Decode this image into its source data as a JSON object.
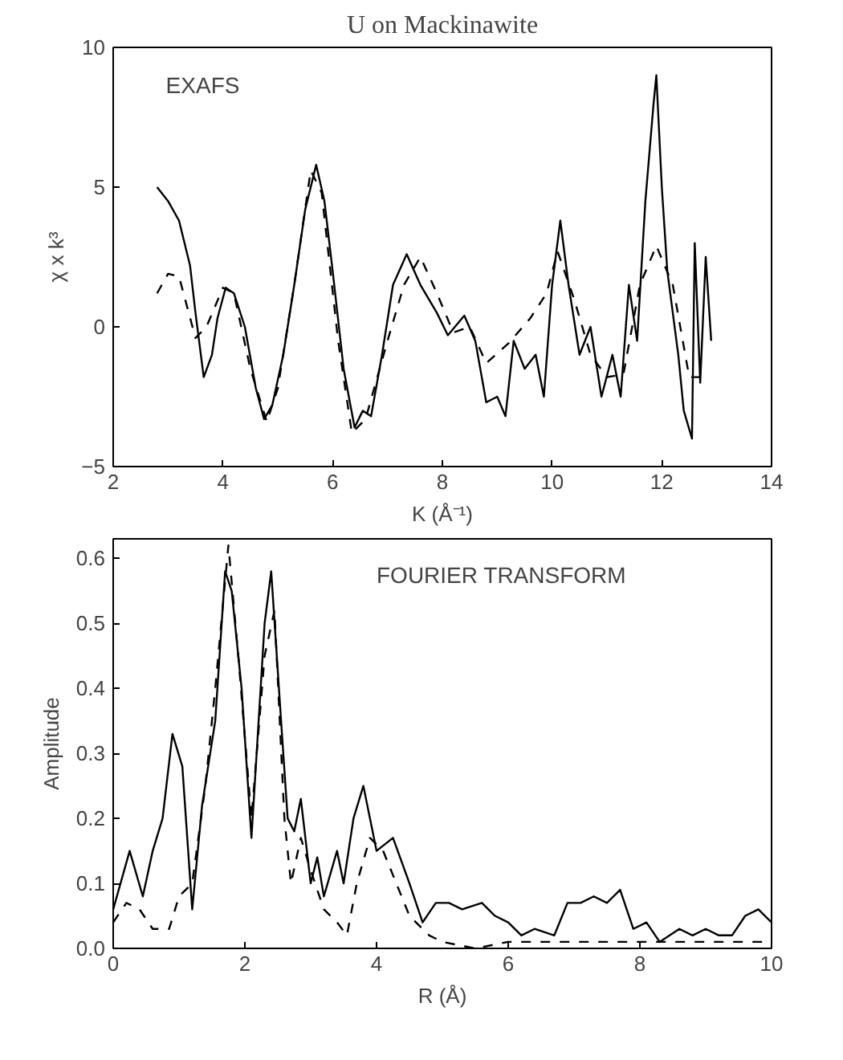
{
  "chart_data": [
    {
      "type": "line",
      "title": "U on Mackinawite",
      "xlabel": "K (Å⁻¹)",
      "ylabel": "χ x k³",
      "annotations": [
        "EXAFS"
      ],
      "xlim": [
        2,
        14
      ],
      "ylim": [
        -5,
        10
      ],
      "xticks": [
        2,
        4,
        6,
        8,
        10,
        12,
        14
      ],
      "yticks": [
        -5,
        0,
        5,
        10
      ],
      "grid": false,
      "series": [
        {
          "color": "#000000",
          "line_style": "solid",
          "x": [
            2.8,
            3.0,
            3.2,
            3.4,
            3.5,
            3.65,
            3.8,
            3.9,
            4.05,
            4.2,
            4.4,
            4.6,
            4.75,
            4.9,
            5.1,
            5.3,
            5.5,
            5.7,
            5.85,
            6.0,
            6.2,
            6.4,
            6.55,
            6.7,
            6.9,
            7.1,
            7.35,
            7.6,
            7.9,
            8.1,
            8.4,
            8.6,
            8.8,
            9.0,
            9.15,
            9.3,
            9.5,
            9.7,
            9.85,
            10.0,
            10.15,
            10.3,
            10.5,
            10.7,
            10.9,
            11.1,
            11.25,
            11.4,
            11.55,
            11.7,
            11.85,
            11.9,
            12.0,
            12.1,
            12.3,
            12.4,
            12.55,
            12.6,
            12.7,
            12.8,
            12.9
          ],
          "values": [
            5.0,
            4.5,
            3.8,
            2.2,
            0.5,
            -1.8,
            -1.0,
            0.3,
            1.4,
            1.2,
            0.0,
            -2.2,
            -3.3,
            -2.8,
            -1.0,
            1.5,
            4.2,
            5.8,
            4.5,
            2.0,
            -1.5,
            -3.6,
            -3.0,
            -3.2,
            -1.0,
            1.5,
            2.6,
            1.5,
            0.5,
            -0.3,
            0.4,
            -0.5,
            -2.7,
            -2.5,
            -3.2,
            -0.5,
            -1.5,
            -1.0,
            -2.5,
            1.5,
            3.8,
            1.5,
            -1.0,
            0.0,
            -2.5,
            -1.0,
            -2.5,
            1.5,
            -0.5,
            4.5,
            8.0,
            9.0,
            5.0,
            2.0,
            -1.0,
            -3.0,
            -4.0,
            3.0,
            -2.0,
            2.5,
            -0.5
          ]
        },
        {
          "color": "#000000",
          "line_style": "dashed",
          "x": [
            2.8,
            3.0,
            3.2,
            3.5,
            3.7,
            4.0,
            4.2,
            4.5,
            4.8,
            5.0,
            5.3,
            5.6,
            5.8,
            6.1,
            6.35,
            6.6,
            7.0,
            7.3,
            7.6,
            7.9,
            8.2,
            8.5,
            8.8,
            9.2,
            9.6,
            9.9,
            10.1,
            10.4,
            10.7,
            11.0,
            11.3,
            11.6,
            11.9,
            12.2,
            12.5,
            12.8
          ],
          "values": [
            1.2,
            1.9,
            1.8,
            -0.4,
            0.0,
            1.4,
            1.2,
            -1.5,
            -3.4,
            -2.2,
            1.5,
            5.6,
            4.8,
            -0.5,
            -3.8,
            -3.3,
            -0.5,
            1.5,
            2.5,
            1.2,
            -0.2,
            0.0,
            -1.3,
            -0.6,
            0.3,
            1.2,
            2.7,
            1.0,
            -1.0,
            -1.8,
            -1.7,
            1.5,
            2.9,
            1.5,
            -1.8,
            -1.8
          ]
        }
      ]
    },
    {
      "type": "line",
      "xlabel": "R (Å)",
      "ylabel": "Amplitude",
      "annotations": [
        "FOURIER TRANSFORM"
      ],
      "xlim": [
        0,
        10
      ],
      "ylim": [
        0,
        0.63
      ],
      "xticks": [
        0,
        2,
        4,
        6,
        8,
        10
      ],
      "yticks": [
        {
          "value": 0,
          "label": "0.0"
        },
        0.1,
        0.2,
        0.3,
        0.4,
        0.5,
        0.6
      ],
      "grid": false,
      "series": [
        {
          "color": "#000000",
          "line_style": "solid",
          "x": [
            0,
            0.25,
            0.45,
            0.6,
            0.75,
            0.9,
            1.05,
            1.2,
            1.35,
            1.55,
            1.7,
            1.8,
            1.95,
            2.1,
            2.3,
            2.4,
            2.55,
            2.65,
            2.75,
            2.85,
            3.0,
            3.1,
            3.2,
            3.4,
            3.5,
            3.65,
            3.8,
            4.0,
            4.25,
            4.5,
            4.7,
            4.9,
            5.1,
            5.3,
            5.6,
            5.8,
            6.0,
            6.2,
            6.4,
            6.7,
            6.9,
            7.1,
            7.3,
            7.5,
            7.7,
            7.9,
            8.1,
            8.3,
            8.6,
            8.8,
            9.0,
            9.2,
            9.4,
            9.6,
            9.8,
            10.0
          ],
          "values": [
            0.06,
            0.15,
            0.08,
            0.15,
            0.2,
            0.33,
            0.28,
            0.06,
            0.22,
            0.35,
            0.58,
            0.55,
            0.4,
            0.17,
            0.5,
            0.58,
            0.35,
            0.2,
            0.18,
            0.23,
            0.1,
            0.14,
            0.08,
            0.15,
            0.1,
            0.2,
            0.25,
            0.15,
            0.17,
            0.1,
            0.04,
            0.07,
            0.07,
            0.06,
            0.07,
            0.05,
            0.04,
            0.02,
            0.03,
            0.02,
            0.07,
            0.07,
            0.08,
            0.07,
            0.09,
            0.03,
            0.04,
            0.01,
            0.03,
            0.02,
            0.03,
            0.02,
            0.02,
            0.05,
            0.06,
            0.04
          ]
        },
        {
          "color": "#000000",
          "line_style": "dashed",
          "x": [
            0,
            0.2,
            0.4,
            0.6,
            0.85,
            1.0,
            1.2,
            1.4,
            1.55,
            1.75,
            1.9,
            2.1,
            2.3,
            2.45,
            2.6,
            2.7,
            2.85,
            3.0,
            3.2,
            3.4,
            3.55,
            3.7,
            3.9,
            4.1,
            4.3,
            4.5,
            4.8,
            5.0,
            5.5,
            6.0,
            7.0,
            8.0,
            9.0,
            10.0
          ],
          "values": [
            0.04,
            0.07,
            0.06,
            0.03,
            0.03,
            0.08,
            0.1,
            0.25,
            0.4,
            0.62,
            0.45,
            0.2,
            0.45,
            0.52,
            0.2,
            0.1,
            0.17,
            0.12,
            0.06,
            0.04,
            0.02,
            0.1,
            0.17,
            0.15,
            0.1,
            0.05,
            0.02,
            0.01,
            0.0,
            0.01,
            0.01,
            0.01,
            0.01,
            0.01
          ]
        }
      ]
    }
  ]
}
